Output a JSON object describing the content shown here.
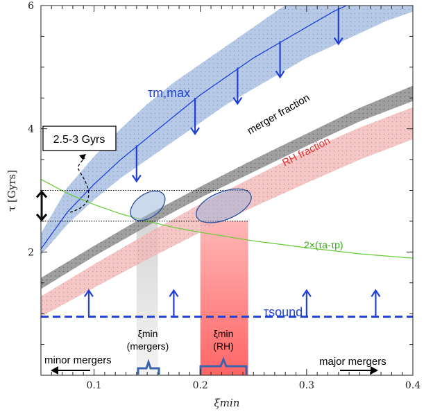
{
  "chart_data": {
    "type": "line",
    "xlabel": "ξmin",
    "ylabel": "τ [Gyrs]",
    "xlim": [
      0.05,
      0.4
    ],
    "ylim": [
      0,
      6
    ],
    "x_ticks": [
      0.1,
      0.2,
      0.3,
      0.4
    ],
    "x_tick_labels": [
      "0.1",
      "0.2",
      "0.3",
      "0.4"
    ],
    "y_ticks": [
      2,
      4,
      6
    ],
    "y_tick_labels": [
      "2",
      "4",
      "6"
    ],
    "grid": false,
    "series": [
      {
        "name": "τm,max",
        "kind": "line-with-band",
        "color": "#1f3fd6",
        "band_color": "#9db8e0",
        "x": [
          0.05,
          0.075,
          0.1,
          0.125,
          0.15,
          0.175,
          0.2,
          0.225,
          0.25,
          0.275,
          0.3,
          0.325,
          0.35,
          0.375,
          0.4
        ],
        "y": [
          2.05,
          2.65,
          3.1,
          3.5,
          3.85,
          4.2,
          4.55,
          4.85,
          5.15,
          5.4,
          5.65,
          5.9,
          6.1,
          6.3,
          6.5
        ],
        "band_low": [
          1.95,
          2.45,
          2.85,
          3.2,
          3.5,
          3.8,
          4.1,
          4.4,
          4.65,
          4.9,
          5.15,
          5.35,
          5.55,
          5.75,
          5.9
        ],
        "band_high": [
          2.3,
          3.05,
          3.55,
          4.0,
          4.4,
          4.75,
          5.05,
          5.35,
          5.65,
          5.95,
          6.2,
          6.4,
          6.6,
          6.8,
          7.0
        ]
      },
      {
        "name": "merger fraction",
        "kind": "band",
        "color": "#9a9a9a",
        "x": [
          0.05,
          0.1,
          0.15,
          0.2,
          0.25,
          0.3,
          0.35,
          0.4
        ],
        "band_low": [
          1.4,
          1.93,
          2.42,
          2.88,
          3.3,
          3.72,
          4.12,
          4.45
        ],
        "band_high": [
          1.58,
          2.1,
          2.6,
          3.06,
          3.5,
          3.92,
          4.34,
          4.7
        ]
      },
      {
        "name": "RH fraction",
        "kind": "band",
        "color": "#f2b8b8",
        "x": [
          0.05,
          0.1,
          0.15,
          0.2,
          0.25,
          0.3,
          0.35,
          0.4
        ],
        "band_low": [
          0.95,
          1.42,
          1.88,
          2.32,
          2.73,
          3.12,
          3.5,
          3.83
        ],
        "band_high": [
          1.28,
          1.8,
          2.3,
          2.78,
          3.22,
          3.64,
          4.02,
          4.35
        ]
      },
      {
        "name": "2×(τa-τp)",
        "kind": "line",
        "color": "#66cc33",
        "x": [
          0.05,
          0.075,
          0.1,
          0.125,
          0.15,
          0.175,
          0.2,
          0.25,
          0.3,
          0.35,
          0.4
        ],
        "y": [
          3.18,
          2.95,
          2.77,
          2.62,
          2.5,
          2.4,
          2.32,
          2.18,
          2.07,
          1.97,
          1.9
        ]
      },
      {
        "name": "τsound",
        "kind": "dashed-line",
        "color": "#1f3fd6",
        "x": [
          0.05,
          0.4
        ],
        "y": [
          0.95,
          0.95
        ]
      }
    ],
    "upper_limit_arrows_x": [
      0.14,
      0.195,
      0.235,
      0.275,
      0.33
    ],
    "lower_limit_arrows_x": [
      0.095,
      0.175,
      0.3,
      0.365
    ],
    "time_range_gyr": [
      2.5,
      3.0
    ],
    "overlap_regions": [
      {
        "label": "mergers",
        "x_range": [
          0.14,
          0.16
        ],
        "color": "#bdbdbd"
      },
      {
        "label": "RH",
        "x_range": [
          0.2,
          0.245
        ],
        "color": "#ff6f6f"
      }
    ]
  },
  "labels": {
    "tau_m_max": "τm,max",
    "merger_fraction": "merger fraction",
    "rh_fraction": "RH fraction",
    "green_curve": "2×(τa-τp)",
    "tau_sound": "τsound",
    "time_box": "2.5-3 Gyrs",
    "xi_min_mergers_1": "ξmin",
    "xi_min_mergers_2": "(mergers)",
    "xi_min_rh_1": "ξmin",
    "xi_min_rh_2": "(RH)",
    "minor_mergers": "minor mergers",
    "major_mergers": "major mergers",
    "ylabel": "τ [Gyrs]",
    "xlabel": "ξmin"
  }
}
